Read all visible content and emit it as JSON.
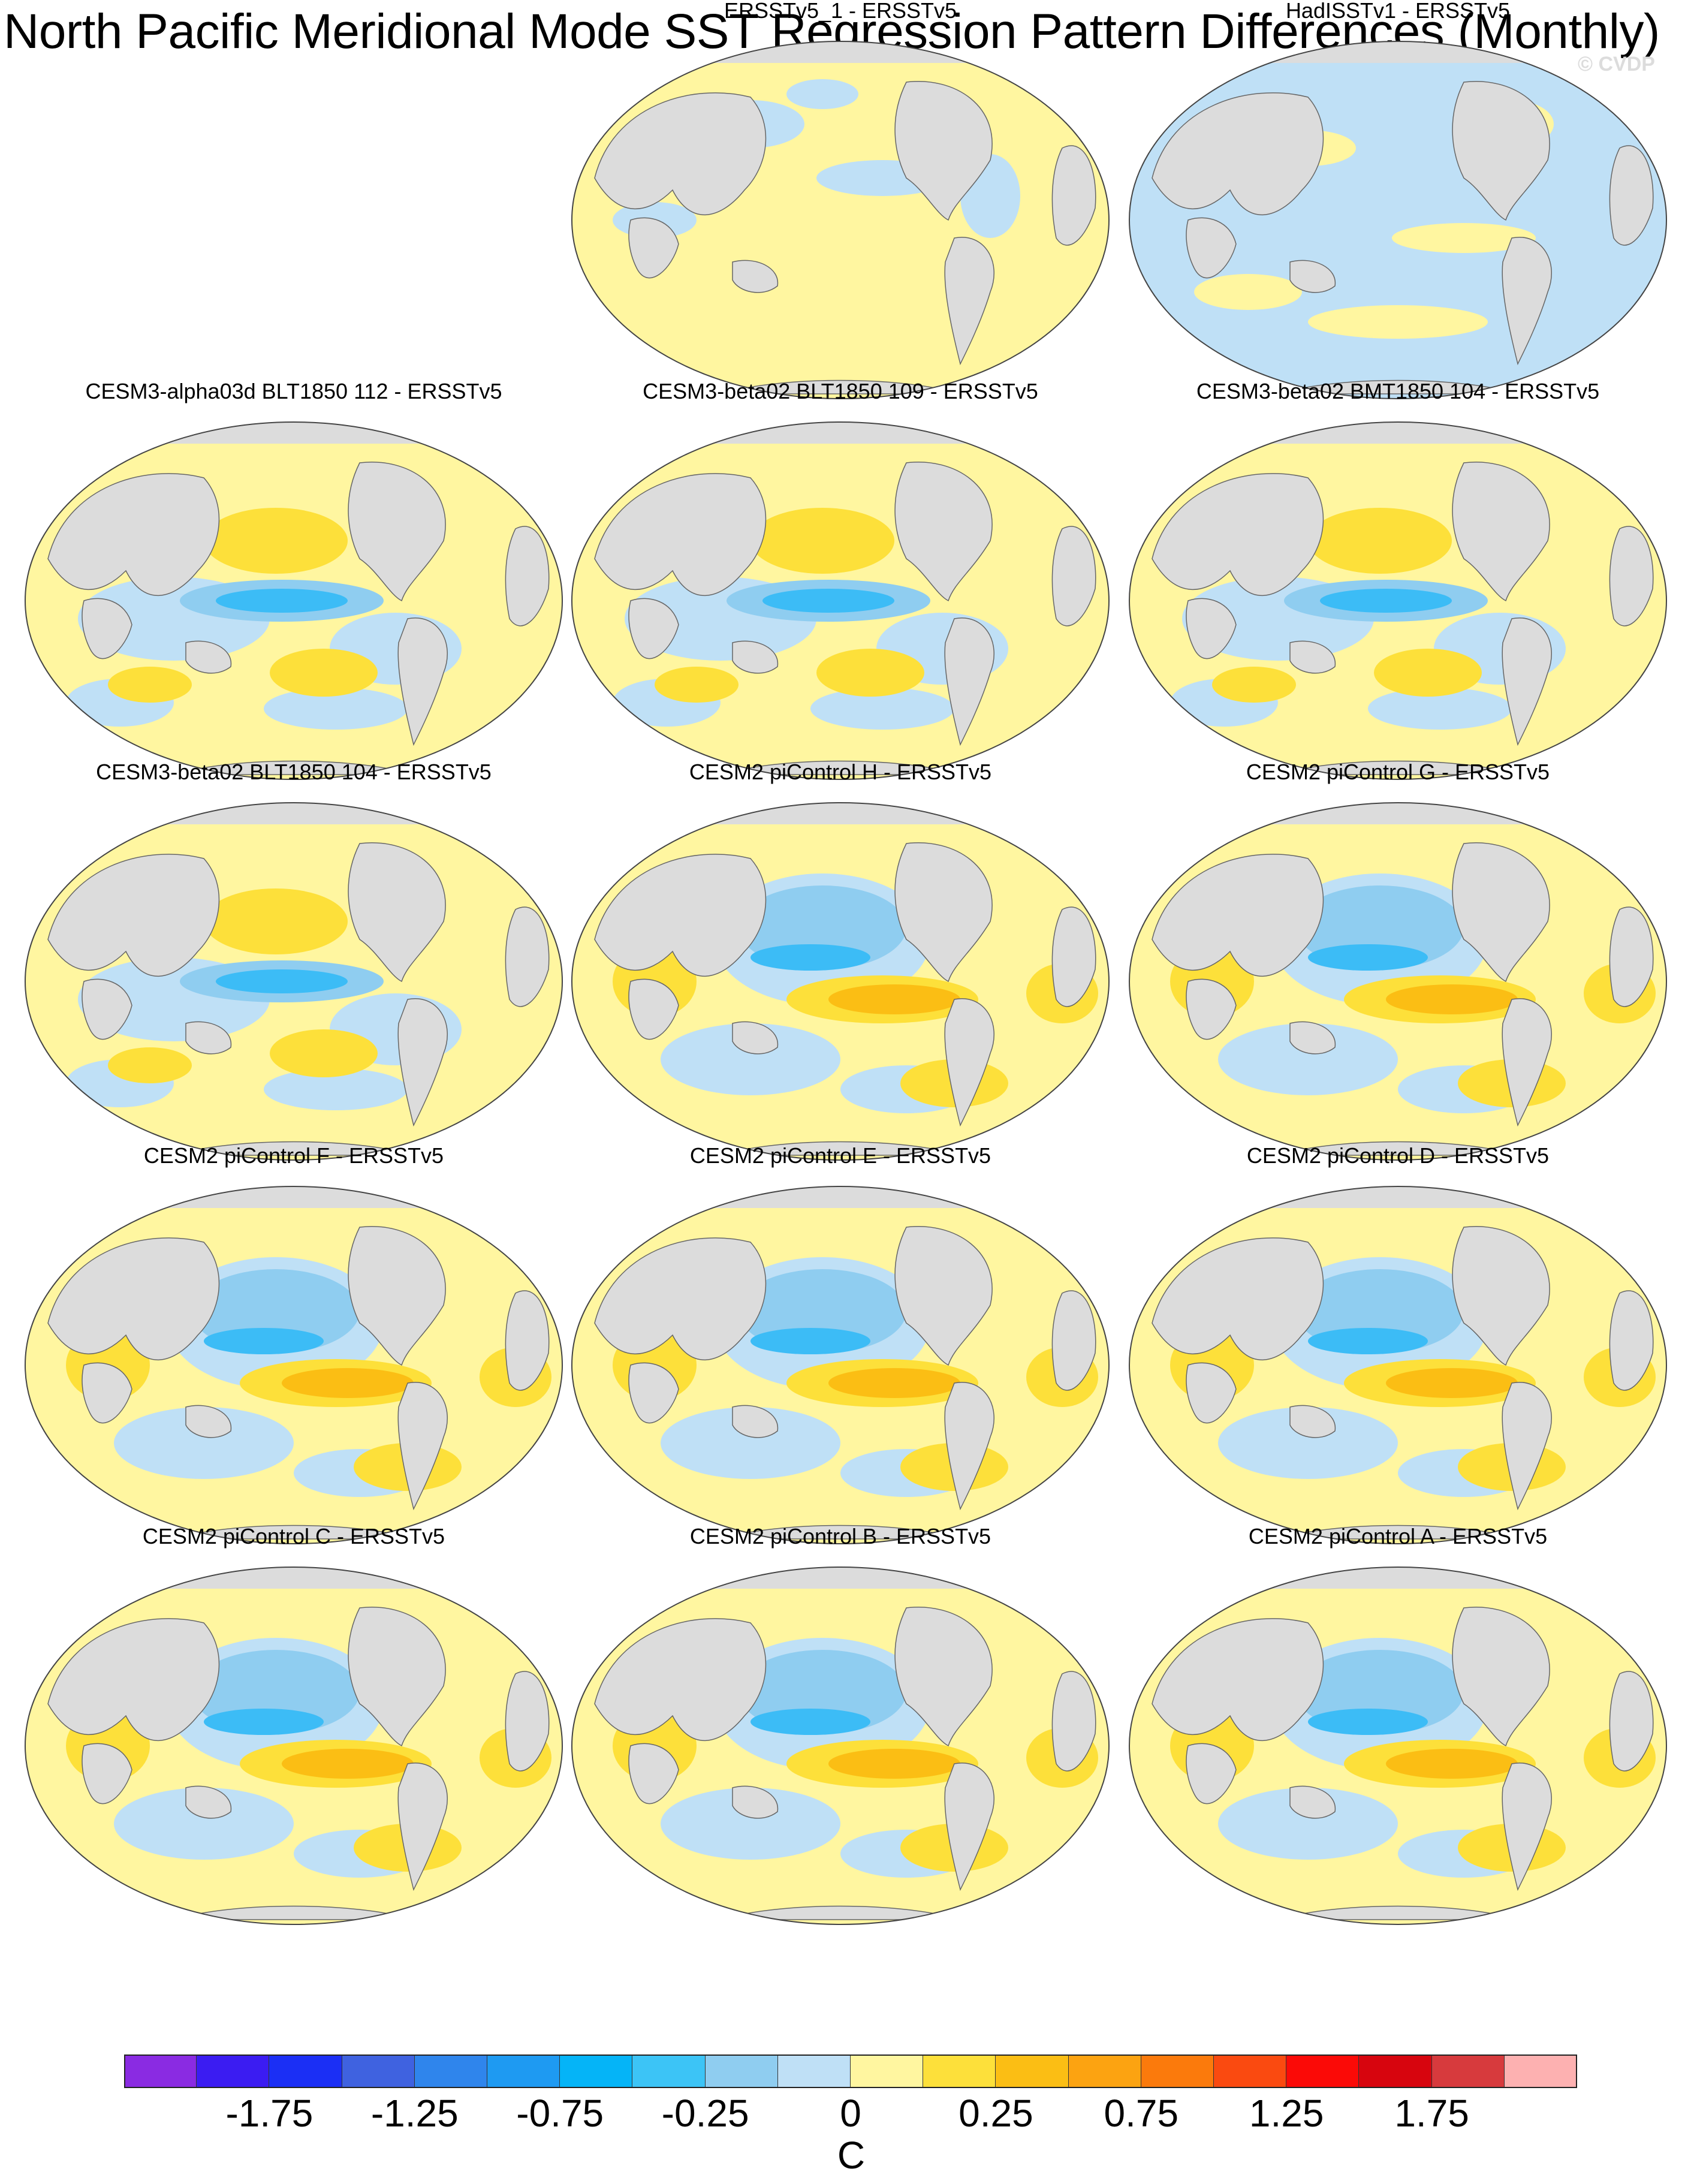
{
  "title": "North Pacific Meridional Mode SST Regression Pattern Differences (Monthly)",
  "watermark": "© CVDP",
  "colors": {
    "land": "#dcdcdc",
    "pos_light": "#fff6a0",
    "pos_mid": "#fde03a",
    "pos_strong": "#fbbe14",
    "neg_light": "#bfe0f6",
    "neg_mid": "#8fcdf0",
    "neg_strong": "#3cbcf6"
  },
  "panels": [
    {
      "title": "ERSSTv5_1 - ERSSTv5",
      "pattern": "weak_pos"
    },
    {
      "title": "HadISSTv1 - ERSSTv5",
      "pattern": "weak_neg"
    },
    {
      "title": "CESM3-alpha03d BLT1850 112 - ERSSTv5",
      "pattern": "model_a"
    },
    {
      "title": "CESM3-beta02 BLT1850 109 - ERSSTv5",
      "pattern": "model_a"
    },
    {
      "title": "CESM3-beta02 BMT1850 104 - ERSSTv5",
      "pattern": "model_a"
    },
    {
      "title": "CESM3-beta02 BLT1850 104 - ERSSTv5",
      "pattern": "model_a"
    },
    {
      "title": "CESM2 piControl H - ERSSTv5",
      "pattern": "model_b"
    },
    {
      "title": "CESM2 piControl G - ERSSTv5",
      "pattern": "model_b"
    },
    {
      "title": "CESM2 piControl F - ERSSTv5",
      "pattern": "model_b"
    },
    {
      "title": "CESM2 piControl E - ERSSTv5",
      "pattern": "model_b"
    },
    {
      "title": "CESM2 piControl D - ERSSTv5",
      "pattern": "model_b"
    },
    {
      "title": "CESM2 piControl C - ERSSTv5",
      "pattern": "model_b"
    },
    {
      "title": "CESM2 piControl B - ERSSTv5",
      "pattern": "model_b"
    },
    {
      "title": "CESM2 piControl A - ERSSTv5",
      "pattern": "model_b"
    }
  ],
  "colorbar": {
    "unit": "C",
    "colors": [
      "#8a2be2",
      "#3b1cf2",
      "#1b2ff5",
      "#3f62e0",
      "#2f85ec",
      "#1e9af2",
      "#05b4f7",
      "#3cc4f6",
      "#8fcdf0",
      "#bfe0f6",
      "#fff6a0",
      "#fde03a",
      "#fbbe14",
      "#fca311",
      "#fb7a0c",
      "#fa4a10",
      "#fb0a07",
      "#d7050e",
      "#d73a3d",
      "#fdb1b1"
    ],
    "labels": [
      "-1.75",
      "-1.25",
      "-0.75",
      "-0.25",
      "0",
      "0.25",
      "0.75",
      "1.25",
      "1.75"
    ]
  }
}
